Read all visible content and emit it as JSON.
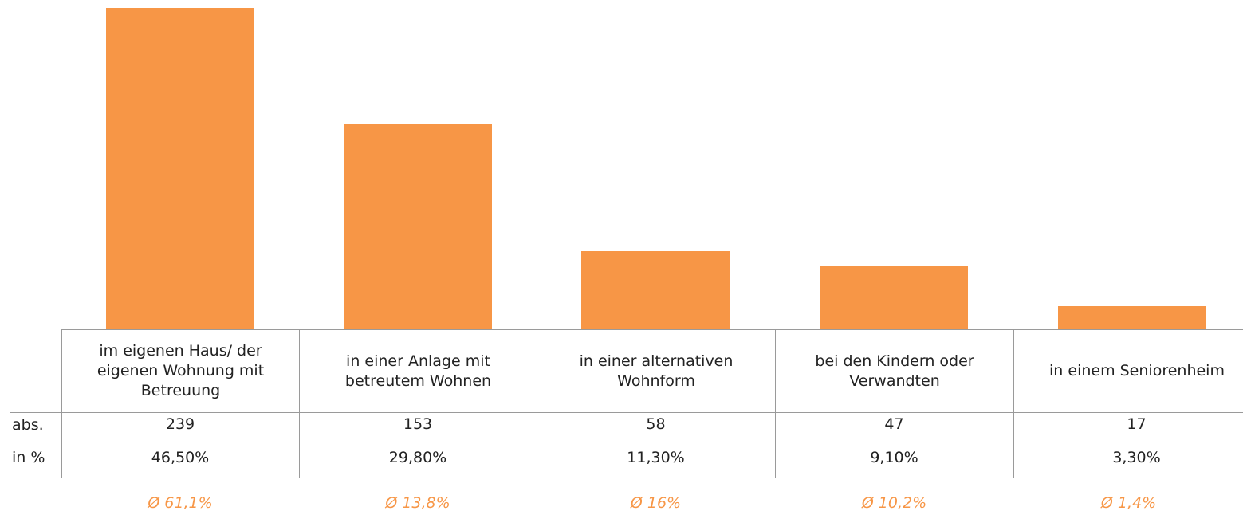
{
  "chart_data": {
    "type": "bar",
    "categories": [
      "im eigenen Haus/ der eigenen Wohnung mit Betreuung",
      "in einer Anlage mit betreutem Wohnen",
      "in einer alternativen Wohnform",
      "bei den Kindern oder Verwandten",
      "in einem Seniorenheim"
    ],
    "values": [
      239,
      153,
      58,
      47,
      17
    ],
    "color": "#f79646",
    "row_labels": [
      "abs.",
      "in %"
    ],
    "percent_labels": [
      "46,50%",
      "29,80%",
      "11,30%",
      "9,10%",
      "3,30%"
    ],
    "averages": [
      "Ø 61,1%",
      "Ø 13,8%",
      "Ø 16%",
      "Ø 10,2%",
      "Ø 1,4%"
    ]
  }
}
